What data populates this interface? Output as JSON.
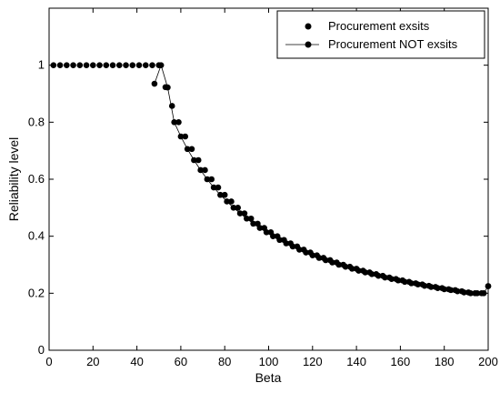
{
  "chart_data": {
    "type": "scatter",
    "xlabel": "Beta",
    "ylabel": "Reliability level",
    "xlim": [
      0,
      200
    ],
    "ylim": [
      0,
      1.2
    ],
    "xticks": [
      "0",
      "20",
      "40",
      "60",
      "80",
      "100",
      "120",
      "140",
      "160",
      "180",
      "200"
    ],
    "yticks": [
      "0",
      "0.2",
      "0.4",
      "0.6",
      "0.8",
      "1"
    ],
    "grid": false,
    "legend_position": "top-right",
    "series": [
      {
        "name": "Procurement exsits",
        "marker": "dot",
        "line": false,
        "color": "#000000",
        "x": [
          2,
          5,
          8,
          11,
          14,
          17,
          20,
          23,
          26,
          29,
          32,
          35,
          38,
          41,
          44,
          47,
          50,
          53,
          56,
          59,
          62,
          65,
          68,
          71,
          74,
          77,
          80,
          83,
          86,
          89,
          92,
          95,
          98,
          101,
          104,
          107,
          110,
          113,
          116,
          119,
          122,
          125,
          128,
          131,
          134,
          137,
          140,
          143,
          146,
          149,
          152,
          155,
          158,
          161,
          164,
          167,
          170,
          173,
          176,
          179,
          182,
          185,
          188,
          191,
          194,
          197,
          200
        ],
        "y": [
          1,
          1,
          1,
          1,
          1,
          1,
          1,
          1,
          1,
          1,
          1,
          1,
          1,
          1,
          1,
          1,
          1,
          0.923,
          0.857,
          0.8,
          0.75,
          0.706,
          0.667,
          0.632,
          0.6,
          0.571,
          0.545,
          0.522,
          0.5,
          0.48,
          0.462,
          0.444,
          0.429,
          0.414,
          0.4,
          0.387,
          0.375,
          0.364,
          0.353,
          0.343,
          0.333,
          0.324,
          0.316,
          0.308,
          0.3,
          0.293,
          0.286,
          0.279,
          0.273,
          0.267,
          0.261,
          0.255,
          0.25,
          0.245,
          0.24,
          0.235,
          0.231,
          0.226,
          0.222,
          0.218,
          0.214,
          0.211,
          0.207,
          0.203,
          0.2,
          0.2,
          0.225
        ]
      },
      {
        "name": "Procurement NOT exsits",
        "marker": "dot",
        "line": true,
        "color": "#000000",
        "x": [
          48,
          51,
          54,
          57,
          60,
          63,
          66,
          69,
          72,
          75,
          78,
          81,
          84,
          87,
          90,
          93,
          96,
          99,
          102,
          105,
          108,
          111,
          114,
          117,
          120,
          123,
          126,
          129,
          132,
          135,
          138,
          141,
          144,
          147,
          150,
          153,
          156,
          159,
          162,
          165,
          168,
          171,
          174,
          177,
          180,
          183,
          186,
          189,
          192,
          195,
          198,
          200
        ],
        "y": [
          0.935,
          1,
          0.922,
          0.8,
          0.75,
          0.706,
          0.667,
          0.632,
          0.6,
          0.571,
          0.545,
          0.522,
          0.5,
          0.48,
          0.462,
          0.444,
          0.429,
          0.414,
          0.4,
          0.387,
          0.375,
          0.364,
          0.353,
          0.343,
          0.333,
          0.324,
          0.316,
          0.308,
          0.3,
          0.293,
          0.286,
          0.279,
          0.273,
          0.267,
          0.261,
          0.255,
          0.25,
          0.245,
          0.24,
          0.235,
          0.231,
          0.226,
          0.222,
          0.218,
          0.214,
          0.211,
          0.207,
          0.203,
          0.2,
          0.2,
          0.2,
          0.225
        ]
      }
    ]
  }
}
